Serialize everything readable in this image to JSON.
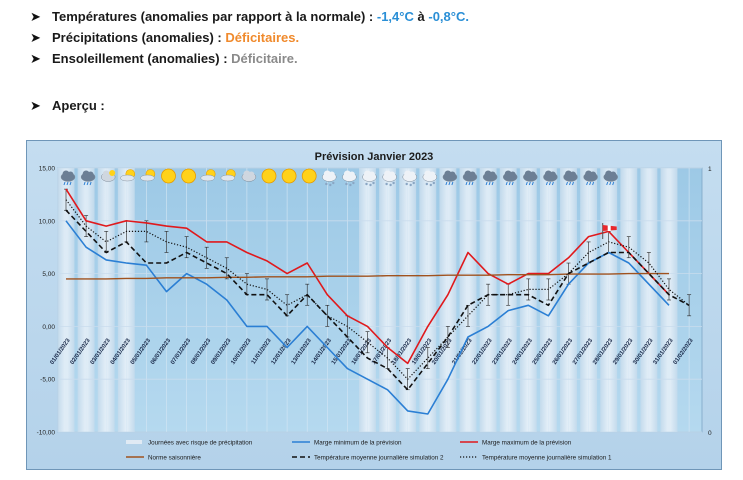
{
  "summary": {
    "temperatures": {
      "label": "Températures (anomalies par rapport à la normale) :",
      "from": "-1,4°C",
      "conj": "à",
      "to": "-0,8°C."
    },
    "precipitations": {
      "label": "Précipitations (anomalies) :",
      "value": "Déficitaires."
    },
    "ensoleillement": {
      "label": "Ensoleillement (anomalies) :",
      "value": "Déficitaire."
    },
    "apercu": "Aperçu :"
  },
  "colors": {
    "min": "#2b7fd4",
    "max": "#e0191c",
    "norm": "#a0521e",
    "sim": "#111111",
    "precip_band": "#dde8f3",
    "plot_bg": "#a8d0ea",
    "title": "#1b1b1b"
  },
  "weather_icons": [
    "rain-icon",
    "rain-icon",
    "cloudy-icon",
    "sun-cloud-icon",
    "sun-cloud-icon",
    "sun-icon",
    "sun-icon",
    "sun-cloud-icon",
    "sun-cloud-icon",
    "cloud-icon",
    "sun-icon",
    "sun-icon",
    "sun-icon",
    "snow-icon",
    "snow-icon",
    "snow-icon",
    "snow-icon",
    "snow-icon",
    "snow-icon",
    "rain-icon",
    "rain-icon",
    "rain-icon",
    "rain-icon",
    "rain-icon",
    "rain-icon",
    "rain-icon",
    "rain-icon",
    "rain-icon"
  ],
  "wind_icon": "windsock-icon",
  "chart_data": {
    "type": "line",
    "title": "Prévision Janvier 2023",
    "xlabel": "",
    "ylabel": "",
    "ylim": [
      -10,
      15
    ],
    "yticks": [
      "15,00",
      "10,00",
      "5,00",
      "0,00",
      "-5,00",
      "-10,00"
    ],
    "y2ticks": [
      "1",
      "0"
    ],
    "x": [
      "01/01/2023",
      "02/01/2023",
      "03/01/2023",
      "04/01/2023",
      "05/01/2023",
      "06/01/2023",
      "07/01/2023",
      "08/01/2023",
      "09/01/2023",
      "10/01/2023",
      "11/01/2023",
      "12/01/2023",
      "13/01/2023",
      "14/01/2023",
      "15/01/2023",
      "16/01/2023",
      "17/01/2023",
      "18/01/2023",
      "19/01/2023",
      "20/01/2023",
      "21/01/2023",
      "22/01/2023",
      "23/01/2023",
      "24/01/2023",
      "25/01/2023",
      "26/01/2023",
      "27/01/2023",
      "28/01/2023",
      "29/01/2023",
      "30/01/2023",
      "31/01/2023",
      "01/02/2023"
    ],
    "precip_days": [
      "01/01/2023",
      "02/01/2023",
      "03/01/2023",
      "04/01/2023",
      "16/01/2023",
      "17/01/2023",
      "18/01/2023",
      "19/01/2023",
      "20/01/2023",
      "21/01/2023",
      "22/01/2023",
      "23/01/2023",
      "24/01/2023",
      "25/01/2023",
      "26/01/2023",
      "27/01/2023",
      "28/01/2023",
      "29/01/2023",
      "30/01/2023",
      "31/01/2023"
    ],
    "grid": true,
    "legend_position": "bottom",
    "series": [
      {
        "name": "Journées avec risque de précipitation",
        "kind": "band"
      },
      {
        "name": "Marge minimum de la prévision",
        "kind": "line",
        "values": [
          10,
          7.5,
          6.3,
          6,
          5.8,
          3.3,
          5,
          4,
          2.5,
          0,
          0,
          -2,
          0,
          -2,
          -4,
          -5,
          -6,
          -8,
          -8.3,
          -5,
          -1,
          0,
          1.5,
          2,
          1,
          4,
          6,
          7,
          6,
          4,
          2,
          null
        ]
      },
      {
        "name": "Marge maximum de la prévision",
        "kind": "line",
        "values": [
          13,
          10,
          9.5,
          10,
          9.8,
          9.5,
          9.3,
          8,
          8,
          7,
          6.2,
          5,
          6,
          3,
          1,
          0,
          -2,
          -3.5,
          0,
          3,
          7,
          5,
          4,
          5,
          5,
          6.5,
          8.5,
          9,
          7,
          5,
          3,
          null
        ]
      },
      {
        "name": "Norme saisonnière",
        "kind": "line",
        "values": [
          4.5,
          4.5,
          4.5,
          4.55,
          4.55,
          4.6,
          4.6,
          4.6,
          4.65,
          4.65,
          4.7,
          4.7,
          4.7,
          4.75,
          4.75,
          4.75,
          4.8,
          4.8,
          4.8,
          4.85,
          4.85,
          4.85,
          4.9,
          4.9,
          4.9,
          4.95,
          4.95,
          4.95,
          5,
          5,
          5,
          null
        ]
      },
      {
        "name": "Température moyenne journalière simulation 2",
        "kind": "dashed",
        "values": [
          11,
          9,
          7,
          8,
          6,
          6,
          7,
          6,
          5,
          3,
          3,
          1,
          3,
          1,
          -1,
          -3,
          -4,
          -6,
          -3.5,
          -1,
          2,
          3,
          3,
          3,
          2,
          5,
          6,
          7,
          7,
          5,
          3,
          2
        ]
      },
      {
        "name": "Température moyenne journalière simulation 1",
        "kind": "dotted",
        "values": [
          12,
          9.5,
          8,
          9,
          9,
          8,
          7.5,
          6.5,
          5.5,
          4,
          3.5,
          2,
          3,
          1,
          0,
          -1.5,
          -3,
          -5,
          -3,
          -1,
          1,
          3,
          3,
          3.5,
          3.5,
          5,
          7,
          8,
          7.5,
          6,
          3.5,
          2
        ]
      }
    ]
  }
}
